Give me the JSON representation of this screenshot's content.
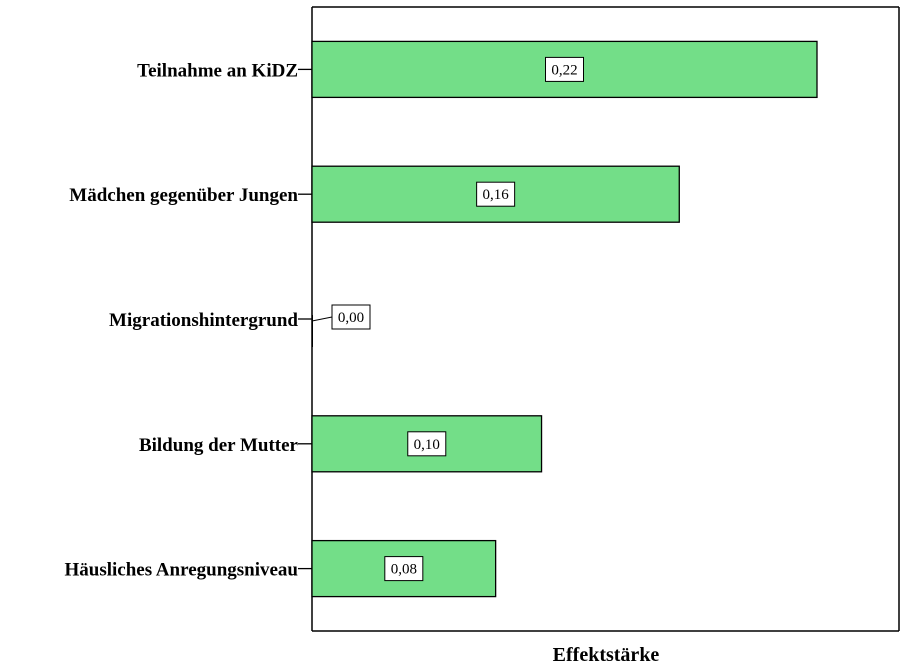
{
  "chart_data": {
    "type": "bar",
    "orientation": "horizontal",
    "categories": [
      "Teilnahme an KiDZ",
      "Mädchen gegenüber Jungen",
      "Migrationshintergrund",
      "Bildung der Mutter",
      "Häusliches Anregungsniveau"
    ],
    "values": [
      0.22,
      0.16,
      0.0,
      0.1,
      0.08
    ],
    "data_labels": [
      "0,22",
      "0,16",
      "0,00",
      "0,10",
      "0,08"
    ],
    "xlabel": "Effektstärke",
    "ylabel": "",
    "title": "",
    "xlim": [
      0,
      0.26
    ],
    "grid": false,
    "legend": "none",
    "bar_color": "#73de88",
    "bar_stroke": "#000000"
  }
}
